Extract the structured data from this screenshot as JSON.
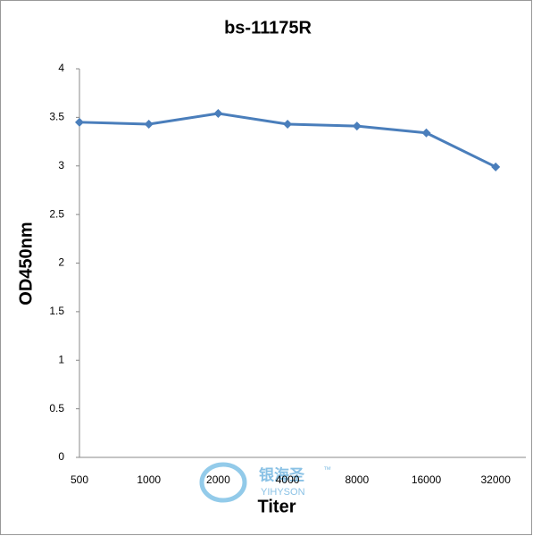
{
  "chart_data": {
    "type": "line",
    "title": "bs-11175R",
    "x_label": "Titer",
    "y_label": "OD450nm",
    "categories": [
      "500",
      "1000",
      "2000",
      "4000",
      "8000",
      "16000",
      "32000"
    ],
    "series": [
      {
        "name": "bs-11175R",
        "color": "#4a7ebb",
        "values": [
          3.45,
          3.43,
          3.54,
          3.43,
          3.41,
          3.34,
          2.99
        ]
      }
    ],
    "ylim": [
      0,
      4
    ],
    "yticks": [
      0,
      0.5,
      1,
      1.5,
      2,
      2.5,
      3,
      3.5,
      4
    ],
    "grid": false
  },
  "watermark": {
    "text": "银海圣",
    "subtext": "YIHYSON",
    "mark": "™"
  }
}
